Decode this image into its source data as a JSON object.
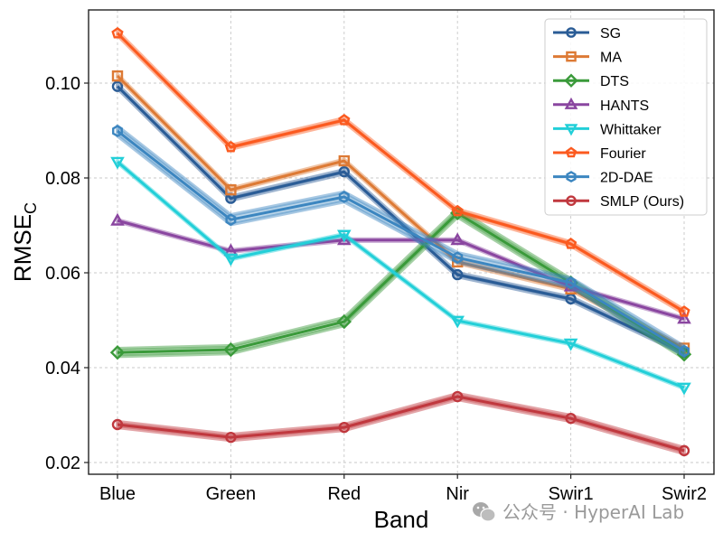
{
  "chart_data": {
    "type": "line",
    "title": "",
    "xlabel": "Band",
    "ylabel_main": "RMSE",
    "ylabel_sub": "C",
    "categories": [
      "Blue",
      "Green",
      "Red",
      "Nir",
      "Swir1",
      "Swir2"
    ],
    "ylim": [
      0.018,
      0.115
    ],
    "yticks": [
      0.02,
      0.04,
      0.06,
      0.08,
      0.1
    ],
    "ytick_labels": [
      "0.02",
      "0.04",
      "0.06",
      "0.08",
      "0.10"
    ],
    "grid": true,
    "legend_position": "top-right",
    "series": [
      {
        "name": "SG",
        "color": "#2a5c96",
        "marker": "circle",
        "band": 0.0004,
        "values": [
          0.0993,
          0.0757,
          0.0813,
          0.0596,
          0.0545,
          0.0432
        ]
      },
      {
        "name": "MA",
        "color": "#dd7a35",
        "marker": "square",
        "band": 0.0003,
        "values": [
          0.1015,
          0.0775,
          0.0836,
          0.0623,
          0.0566,
          0.0441
        ]
      },
      {
        "name": "DTS",
        "color": "#3a9a3a",
        "marker": "diamond",
        "band": 0.0008,
        "values": [
          0.0432,
          0.0438,
          0.0497,
          0.0726,
          0.0579,
          0.0428
        ]
      },
      {
        "name": "HANTS",
        "color": "#8a46a0",
        "marker": "triangle-up",
        "band": 0.0002,
        "values": [
          0.071,
          0.0646,
          0.0669,
          0.0669,
          0.0571,
          0.0503
        ]
      },
      {
        "name": "Whittaker",
        "color": "#22cfd8",
        "marker": "triangle-down",
        "band": 0.0002,
        "values": [
          0.0834,
          0.063,
          0.068,
          0.0499,
          0.0451,
          0.0358
        ]
      },
      {
        "name": "Fourier",
        "color": "#fb5a1f",
        "marker": "pentagon",
        "band": 0.0004,
        "values": [
          0.1105,
          0.0865,
          0.0922,
          0.073,
          0.0661,
          0.0518
        ]
      },
      {
        "name": "2D-DAE",
        "color": "#3c86c0",
        "marker": "hexagon",
        "band": 0.001,
        "values": [
          0.0899,
          0.0712,
          0.076,
          0.0632,
          0.0579,
          0.0435
        ]
      },
      {
        "name": "SMLP (Ours)",
        "color": "#c0383e",
        "marker": "circle",
        "band": 0.0006,
        "values": [
          0.028,
          0.0253,
          0.0274,
          0.0339,
          0.0293,
          0.0225
        ]
      }
    ]
  },
  "watermark": {
    "text": "公众号 · HyperAI Lab",
    "icon": "wechat-icon"
  }
}
